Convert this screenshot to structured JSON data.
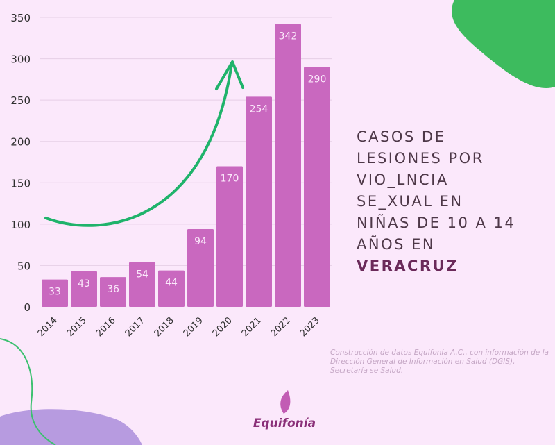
{
  "chart_data": {
    "type": "bar",
    "categories": [
      "2014",
      "2015",
      "2016",
      "2017",
      "2018",
      "2019",
      "2020",
      "2021",
      "2022",
      "2023"
    ],
    "values": [
      33,
      43,
      36,
      54,
      44,
      94,
      170,
      254,
      342,
      290
    ],
    "ylim": [
      0,
      350
    ],
    "yticks": [
      0,
      50,
      100,
      150,
      200,
      250,
      300,
      350
    ],
    "grid": true,
    "bar_color": "#c968bf",
    "trend_arrow_color": "#1fb36b"
  },
  "title_lines": [
    "CASOS DE",
    "LESIONES POR",
    "VIO_LNCIA",
    "SE_XUAL EN",
    "NIÑAS DE 10 A 14",
    "AÑOS EN"
  ],
  "title_emphasis": "VERACRUZ",
  "source": "Construcción de datos Equifonía A.C., con información de la Dirección General de Información en Salud (DGIS), Secretaría se Salud.",
  "logo": {
    "name": "Equifonía"
  }
}
